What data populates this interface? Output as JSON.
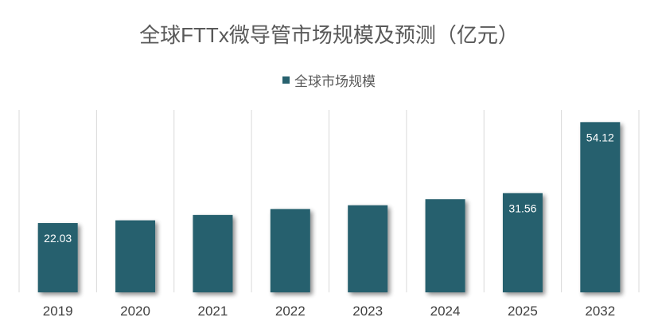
{
  "chart_data": {
    "type": "bar",
    "title": "全球FTTx微导管市场规模及预测（亿元）",
    "xlabel": "",
    "ylabel": "",
    "categories": [
      "2019",
      "2020",
      "2021",
      "2022",
      "2023",
      "2024",
      "2025",
      "2032"
    ],
    "series": [
      {
        "name": "全球市场规模",
        "values": [
          22.03,
          22.9,
          24.6,
          26.5,
          27.7,
          29.6,
          31.56,
          54.12
        ],
        "labels": [
          "22.03",
          "",
          "",
          "",
          "",
          "",
          "31.56",
          "54.12"
        ]
      }
    ],
    "ylim": [
      0,
      58
    ],
    "grid": "vertical",
    "legend": "top",
    "bar_color": "#27616E"
  }
}
